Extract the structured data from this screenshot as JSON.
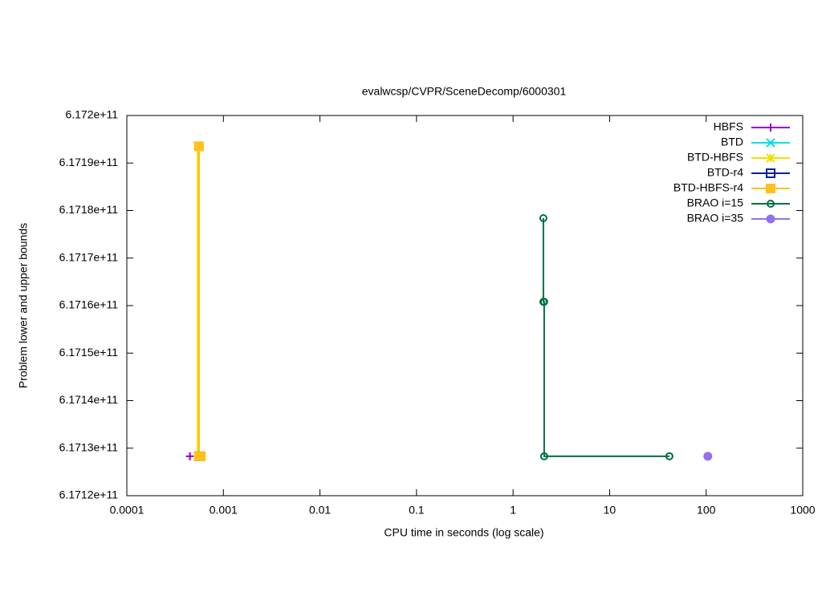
{
  "chart_data": {
    "type": "line",
    "title": "evalwcsp/CVPR/SceneDecomp/6000301",
    "x_label": "CPU time in seconds (log scale)",
    "y_label": "Problem lower and upper bounds",
    "xscale": "log",
    "xlim": [
      0.0001,
      1000
    ],
    "xticks": [
      0.0001,
      0.001,
      0.01,
      0.1,
      1,
      10,
      100,
      1000
    ],
    "ylim": [
      617120000000,
      617200000000
    ],
    "yticks": [
      {
        "value": 617120000000,
        "label": "6.1712e+11"
      },
      {
        "value": 617130000000,
        "label": "6.1713e+11"
      },
      {
        "value": 617140000000,
        "label": "6.1714e+11"
      },
      {
        "value": 617150000000,
        "label": "6.1715e+11"
      },
      {
        "value": 617160000000,
        "label": "6.1716e+11"
      },
      {
        "value": 617170000000,
        "label": "6.1717e+11"
      },
      {
        "value": 617180000000,
        "label": "6.1718e+11"
      },
      {
        "value": 617190000000,
        "label": "6.1719e+11"
      },
      {
        "value": 617200000000,
        "label": "6.172e+11"
      }
    ],
    "legend": "top-right",
    "series": [
      {
        "name": "HBFS",
        "color": "#9400d3",
        "marker": "plus",
        "x": [
          0.00045,
          0.00055
        ],
        "values": [
          617128300000,
          617128300000
        ]
      },
      {
        "name": "BTD",
        "color": "#00e0e0",
        "marker": "cross",
        "x": [
          0.00055
        ],
        "values": [
          617128300000
        ]
      },
      {
        "name": "BTD-HBFS",
        "color": "#f0e000",
        "marker": "star",
        "x": [
          0.00054,
          0.00054,
          0.0006
        ],
        "values": [
          617193700000,
          617128300000,
          617128300000
        ]
      },
      {
        "name": "BTD-r4",
        "color": "#0020a0",
        "marker": "square-open",
        "x": [
          0.00056
        ],
        "values": [
          617128300000
        ]
      },
      {
        "name": "BTD-HBFS-r4",
        "color": "#ffc020",
        "marker": "square",
        "x": [
          0.00056,
          0.00056,
          0.00058
        ],
        "values": [
          617193500000,
          617128300000,
          617128300000
        ]
      },
      {
        "name": "BRAO i=15",
        "color": "#007040",
        "marker": "circle-open",
        "x": [
          2.06,
          2.06,
          2.1,
          2.1,
          41.6
        ],
        "values": [
          617178400000,
          617160800000,
          617160800000,
          617128300000,
          617128300000
        ]
      },
      {
        "name": "BRAO i=35",
        "color": "#9370f0",
        "marker": "circle",
        "x": [
          104
        ],
        "values": [
          617128300000
        ]
      }
    ]
  }
}
